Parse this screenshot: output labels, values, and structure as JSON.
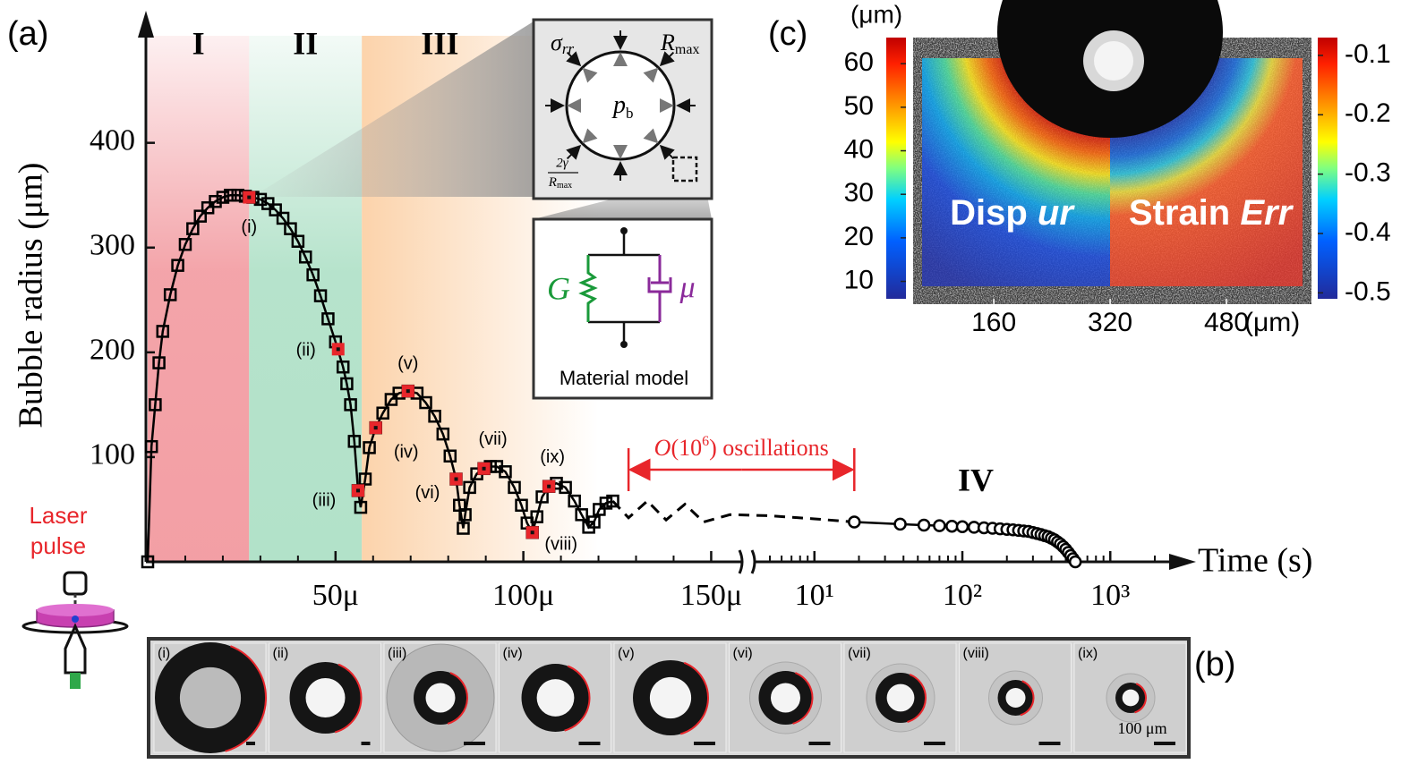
{
  "chart_data": [
    {
      "type": "line",
      "panel_label": "(a)",
      "ylabel": "Bubble radius (μm)",
      "xlabel": "Time (s)",
      "xscale": [
        "linear",
        "log"
      ],
      "xlim": [
        [
          0,
          0.000158
        ],
        [
          4,
          2000
        ]
      ],
      "ylim": [
        0,
        480
      ],
      "yticks": [
        100,
        200,
        300,
        400
      ],
      "xticks": [
        {
          "value": 5e-05,
          "label": "50μ"
        },
        {
          "value": 0.0001,
          "label": "100μ"
        },
        {
          "value": 0.00015,
          "label": "150μ"
        },
        {
          "value": 10,
          "label": "10¹"
        },
        {
          "value": 100,
          "label": "10²"
        },
        {
          "value": 1000,
          "label": "10³"
        }
      ],
      "xminorticks": [
        1e-05,
        2e-05,
        3e-05,
        4e-05,
        6e-05,
        7e-05,
        8e-05,
        9e-05,
        0.00011,
        0.00012,
        0.00013,
        0.00014,
        5,
        6,
        7,
        8,
        9,
        20,
        30,
        40,
        50,
        60,
        70,
        80,
        90,
        200,
        300,
        400,
        500,
        600,
        700,
        800,
        900,
        2000
      ],
      "regions": [
        {
          "label": "I",
          "x": [
            0,
            2.7e-05
          ],
          "color": "#f29aa0"
        },
        {
          "label": "II",
          "x": [
            2.7e-05,
            5.7e-05
          ],
          "color": "#aee0c6"
        },
        {
          "label": "III",
          "x": [
            5.7e-05,
            0.00012
          ],
          "color": "#fbc896"
        }
      ],
      "region_iv_label": "IV",
      "series": [
        {
          "marker": "square",
          "line": "solid",
          "color": "#000000",
          "x": [
            0,
            1e-06,
            2e-06,
            3e-06,
            4e-06,
            6e-06,
            8e-06,
            1e-05,
            1.2e-05,
            1.4e-05,
            1.6e-05,
            1.8e-05,
            2e-05,
            2.2e-05,
            2.4e-05,
            2.6e-05,
            2.8e-05,
            3e-05,
            3.2e-05,
            3.4e-05,
            3.6e-05,
            3.8e-05,
            4e-05,
            4.2e-05,
            4.4e-05,
            4.6e-05,
            4.8e-05,
            5e-05,
            5.2e-05,
            5.3e-05,
            5.4e-05,
            5.5e-05,
            5.6e-05,
            5.67e-05,
            5.79e-05,
            5.9e-05,
            6.07e-05,
            6.26e-05,
            6.48e-05,
            6.69e-05,
            6.93e-05,
            7.17e-05,
            7.4e-05,
            7.64e-05,
            7.86e-05,
            8.05e-05,
            8.21e-05,
            8.3e-05,
            8.4e-05,
            8.45e-05,
            8.57e-05,
            8.76e-05,
            8.95e-05,
            9.12e-05,
            9.29e-05,
            9.52e-05,
            9.76e-05,
            9.95e-05,
            0.000101,
            0.0001024,
            0.0001036,
            0.000105,
            0.0001068,
            0.0001088,
            0.0001112,
            0.0001136,
            0.0001155,
            0.0001174,
            0.0001188,
            0.0001202,
            0.000122,
            0.0001238
          ],
          "values": [
            0,
            110,
            150,
            190,
            220,
            255,
            283,
            303,
            318,
            330,
            338,
            344,
            348,
            350,
            350,
            349,
            348,
            346,
            342,
            336,
            328,
            318,
            306,
            291,
            274,
            254,
            232,
            210,
            186,
            170,
            150,
            115,
            68,
            52,
            79,
            109,
            128,
            142,
            155,
            161,
            163,
            161,
            152,
            139,
            122,
            101,
            79,
            54,
            32,
            45,
            71,
            84,
            89,
            91,
            91,
            86,
            71,
            54,
            37,
            28,
            43,
            62,
            72,
            75,
            71,
            58,
            45,
            33,
            38,
            50,
            56,
            58
          ]
        },
        {
          "marker": "filled-square",
          "line": "none",
          "color": "#e8262b",
          "x": [
            2.7e-05,
            5.07e-05,
            5.6e-05,
            6.07e-05,
            6.93e-05,
            8.21e-05,
            8.95e-05,
            0.0001024,
            0.0001068
          ],
          "values": [
            348,
            203,
            68,
            128,
            163,
            79,
            89,
            28,
            72
          ],
          "point_labels": [
            "(i)",
            "(ii)",
            "(iii)",
            "(iv)",
            "(v)",
            "(vi)",
            "(vii)",
            "(viii)",
            "(ix)"
          ]
        },
        {
          "marker": "none",
          "line": "dashed",
          "color": "#000000",
          "x": [
            0.0001238,
            0.000128,
            0.000133,
            0.000138,
            0.000143,
            0.000148,
            0.000155,
            5,
            10,
            18.6
          ],
          "values": [
            58,
            42,
            58,
            40,
            55,
            38,
            45,
            44,
            41,
            38
          ]
        },
        {
          "marker": "circle",
          "line": "solid",
          "color": "#000000",
          "x": [
            18.6,
            38,
            55,
            70,
            85,
            100,
            120,
            140,
            160,
            180,
            200,
            220,
            240,
            260,
            280,
            300,
            320,
            340,
            360,
            380,
            400,
            420,
            440,
            460,
            480,
            500,
            520,
            540,
            560,
            580
          ],
          "values": [
            38,
            36,
            35,
            34.5,
            34,
            33.5,
            33,
            32.5,
            32,
            31.5,
            31,
            30.5,
            30,
            29.5,
            29,
            28,
            27,
            26,
            25,
            24,
            22.5,
            21,
            19,
            17,
            14.5,
            12,
            9,
            6,
            3,
            0
          ]
        }
      ],
      "annotation": {
        "text": [
          "O",
          "(10",
          "6",
          ") oscillations"
        ],
        "x": [
          0.000128,
          18.6
        ],
        "color": "#e8262b"
      },
      "laser_label": [
        "Laser",
        "pulse"
      ]
    },
    {
      "type": "image",
      "panel_label": "(c)",
      "xlim": [
        49,
        597
      ],
      "xticks": [
        160,
        320,
        480
      ],
      "xunit": "(μm)",
      "overlays": [
        [
          "Disp",
          "ur"
        ],
        [
          "Strain",
          "Err"
        ]
      ],
      "colorbars": [
        {
          "unit": "(μm)",
          "clim": [
            6,
            66
          ],
          "ticks": [
            10,
            20,
            30,
            40,
            50,
            60
          ]
        },
        {
          "clim": [
            -0.51,
            -0.07
          ],
          "ticks": [
            -0.5,
            -0.4,
            -0.3,
            -0.2,
            -0.1
          ]
        }
      ]
    }
  ],
  "insets": {
    "force_diagram": {
      "stress": [
        "σ",
        "rr"
      ],
      "radius": [
        "R",
        "max"
      ],
      "pressure": [
        "p",
        "b"
      ],
      "tension_numerator": "2γ",
      "tension_denominator": [
        "R",
        "max"
      ]
    },
    "material_model": {
      "spring": "G",
      "dashpot": "μ",
      "caption": "Material model"
    }
  },
  "panel_b": {
    "panel_label": "(b)",
    "frames": [
      "(i)",
      "(ii)",
      "(iii)",
      "(iv)",
      "(v)",
      "(vi)",
      "(vii)",
      "(viii)",
      "(ix)"
    ],
    "scale_bar": "100 μm"
  }
}
